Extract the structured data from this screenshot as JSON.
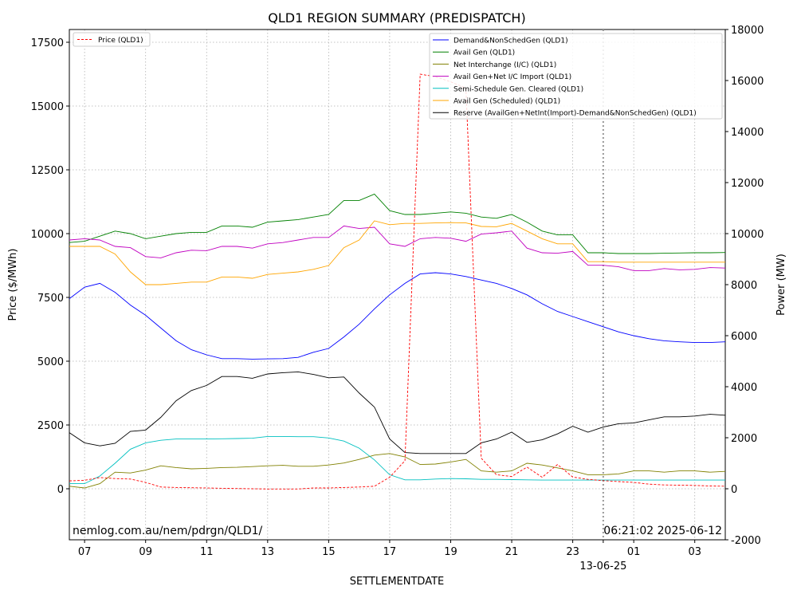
{
  "chart_data": {
    "type": "line",
    "title": "QLD1 REGION SUMMARY (PREDISPATCH)",
    "xlabel": "SETTLEMENTDATE",
    "ylabel_left": "Price ($/MWh)",
    "ylabel_right": "Power (MW)",
    "x_range_hours": [
      6.5,
      28.0
    ],
    "ylim_left": [
      -2000,
      18000
    ],
    "ylim_right": [
      -2000,
      18000
    ],
    "left_ticks": [
      0,
      2500,
      5000,
      7500,
      10000,
      12500,
      15000,
      17500
    ],
    "right_ticks": [
      -2000,
      0,
      2000,
      4000,
      6000,
      8000,
      10000,
      12000,
      14000,
      16000,
      18000
    ],
    "x_tick_labels": [
      "07",
      "09",
      "11",
      "13",
      "15",
      "17",
      "19",
      "21",
      "23",
      "01",
      "03"
    ],
    "date_label": "13-06-25",
    "now_marker_hour": 24.0,
    "grid": true,
    "legend_left_position": "top-left",
    "legend_right_position": "top-right",
    "footer_left": "nemlog.com.au/nem/pdrgn/QLD1/",
    "footer_right": "06:21:02 2025-06-12",
    "x": [
      6.5,
      7.0,
      7.5,
      8.0,
      8.5,
      9.0,
      9.5,
      10.0,
      10.5,
      11.0,
      11.5,
      12.0,
      12.5,
      13.0,
      13.5,
      14.0,
      14.5,
      15.0,
      15.5,
      16.0,
      16.5,
      17.0,
      17.5,
      18.0,
      18.5,
      19.0,
      19.5,
      20.0,
      20.5,
      21.0,
      21.5,
      22.0,
      22.5,
      23.0,
      23.5,
      24.0,
      24.5,
      25.0,
      25.5,
      26.0,
      26.5,
      27.0,
      27.5,
      28.0
    ],
    "price_series": {
      "name": "Price (QLD1)",
      "color": "#ff0000",
      "axis": "left",
      "values": [
        310,
        330,
        440,
        400,
        380,
        250,
        70,
        50,
        40,
        30,
        20,
        10,
        0,
        -10,
        -10,
        -10,
        30,
        30,
        50,
        70,
        100,
        450,
        1100,
        16250,
        16150,
        15950,
        15700,
        1200,
        550,
        480,
        850,
        450,
        950,
        460,
        370,
        320,
        280,
        250,
        180,
        150,
        140,
        130,
        110,
        100
      ]
    },
    "series": [
      {
        "name": "Demand&NonSchedGen (QLD1)",
        "color": "#0000ff",
        "values": [
          7450,
          7900,
          8050,
          7700,
          7200,
          6800,
          6300,
          5800,
          5450,
          5250,
          5100,
          5100,
          5080,
          5090,
          5100,
          5150,
          5350,
          5500,
          5950,
          6450,
          7050,
          7600,
          8050,
          8420,
          8470,
          8420,
          8320,
          8180,
          8050,
          7850,
          7600,
          7250,
          6950,
          6750,
          6550,
          6350,
          6150,
          6000,
          5880,
          5800,
          5760,
          5730,
          5730,
          5760
        ]
      },
      {
        "name": "Avail Gen (QLD1)",
        "color": "#008000",
        "values": [
          9650,
          9700,
          9900,
          10100,
          10000,
          9800,
          9900,
          10000,
          10050,
          10050,
          10300,
          10300,
          10250,
          10450,
          10500,
          10550,
          10650,
          10750,
          11300,
          11300,
          11550,
          10900,
          10750,
          10750,
          10800,
          10850,
          10800,
          10650,
          10600,
          10750,
          10450,
          10100,
          9950,
          9950,
          9250,
          9250,
          9220,
          9220,
          9220,
          9230,
          9240,
          9250,
          9250,
          9260
        ]
      },
      {
        "name": "Net Interchange (I/C) (QLD1)",
        "color": "#808000",
        "values": [
          100,
          30,
          200,
          650,
          620,
          730,
          900,
          830,
          780,
          800,
          830,
          840,
          870,
          900,
          920,
          880,
          880,
          930,
          1010,
          1150,
          1320,
          1380,
          1250,
          950,
          970,
          1050,
          1150,
          700,
          650,
          700,
          1000,
          930,
          820,
          700,
          550,
          550,
          580,
          700,
          700,
          650,
          700,
          700,
          650,
          680
        ]
      },
      {
        "name": "Avail Gen+Net I/C Import (QLD1)",
        "color": "#c000c0",
        "values": [
          9750,
          9800,
          9750,
          9500,
          9450,
          9100,
          9050,
          9250,
          9350,
          9330,
          9500,
          9500,
          9430,
          9600,
          9650,
          9750,
          9850,
          9850,
          10300,
          10200,
          10250,
          9600,
          9500,
          9800,
          9850,
          9820,
          9700,
          9980,
          10030,
          10100,
          9430,
          9250,
          9230,
          9300,
          8760,
          8760,
          8700,
          8550,
          8550,
          8630,
          8580,
          8600,
          8670,
          8650
        ]
      },
      {
        "name": "Semi-Schedule Gen. Cleared (QLD1)",
        "color": "#00c0c0",
        "values": [
          200,
          200,
          500,
          1000,
          1550,
          1800,
          1900,
          1950,
          1950,
          1950,
          1960,
          1970,
          1980,
          2050,
          2050,
          2040,
          2040,
          1990,
          1870,
          1590,
          1130,
          550,
          350,
          350,
          380,
          400,
          390,
          370,
          370,
          360,
          350,
          340,
          340,
          340,
          340,
          340,
          340,
          340,
          340,
          340,
          340,
          340,
          340,
          340
        ]
      },
      {
        "name": "Avail Gen (Scheduled) (QLD1)",
        "color": "#ffa500",
        "values": [
          9500,
          9500,
          9500,
          9200,
          8500,
          8000,
          8000,
          8050,
          8100,
          8100,
          8300,
          8300,
          8250,
          8400,
          8450,
          8500,
          8600,
          8750,
          9450,
          9750,
          10500,
          10350,
          10400,
          10400,
          10420,
          10430,
          10420,
          10280,
          10270,
          10400,
          10100,
          9800,
          9600,
          9600,
          8900,
          8900,
          8880,
          8880,
          8880,
          8880,
          8880,
          8880,
          8880,
          8880
        ]
      },
      {
        "name": "Reserve (AvailGen+NetInt(Import)-Demand&NonSchedGen) (QLD1)",
        "color": "#000000",
        "values": [
          2200,
          1800,
          1680,
          1780,
          2250,
          2300,
          2800,
          3450,
          3850,
          4050,
          4400,
          4400,
          4330,
          4500,
          4550,
          4580,
          4480,
          4350,
          4380,
          3750,
          3200,
          1950,
          1420,
          1380,
          1380,
          1380,
          1380,
          1800,
          1950,
          2220,
          1820,
          1920,
          2150,
          2450,
          2220,
          2420,
          2550,
          2580,
          2700,
          2820,
          2820,
          2850,
          2920,
          2880
        ]
      }
    ]
  }
}
